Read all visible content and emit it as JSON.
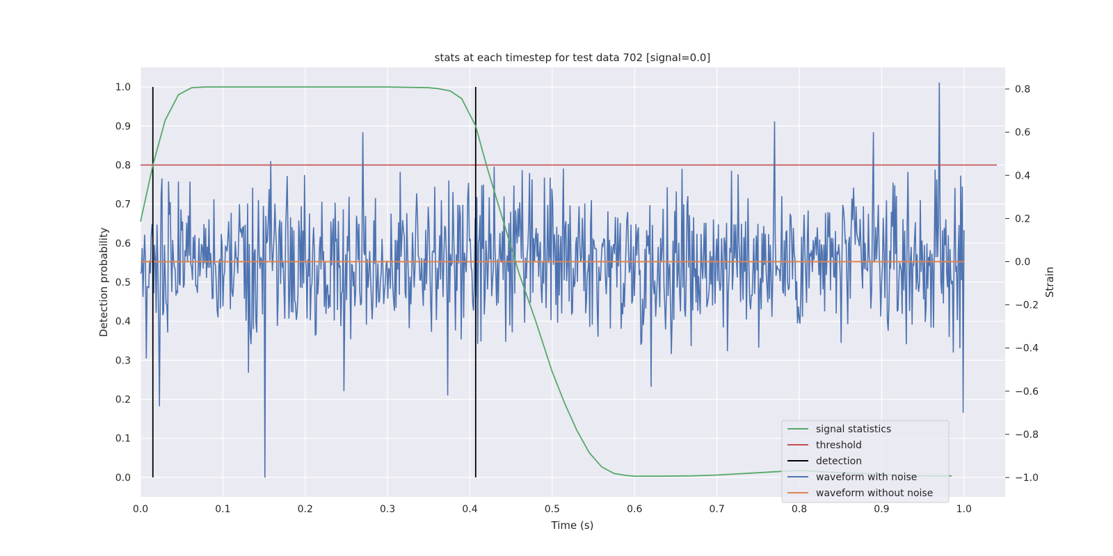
{
  "chart_data": {
    "type": "line",
    "title": "stats at each timestep for test data 702 [signal=0.0]",
    "xlabel": "Time (s)",
    "ylabel_left": "Detection probability",
    "ylabel_right": "Strain",
    "xlim": [
      0.0,
      1.05
    ],
    "ylim_left": [
      -0.05,
      1.05
    ],
    "ylim_right": [
      -1.09,
      0.9
    ],
    "x_ticks": [
      0.0,
      0.1,
      0.2,
      0.3,
      0.4,
      0.5,
      0.6,
      0.7,
      0.8,
      0.9,
      1.0
    ],
    "x_tick_labels": [
      "0.0",
      "0.1",
      "0.2",
      "0.3",
      "0.4",
      "0.5",
      "0.6",
      "0.7",
      "0.8",
      "0.9",
      "1.0"
    ],
    "y_left_ticks": [
      0.0,
      0.1,
      0.2,
      0.3,
      0.4,
      0.5,
      0.6,
      0.7,
      0.8,
      0.9,
      1.0
    ],
    "y_left_tick_labels": [
      "0.0",
      "0.1",
      "0.2",
      "0.3",
      "0.4",
      "0.5",
      "0.6",
      "0.7",
      "0.8",
      "0.9",
      "1.0"
    ],
    "y_right_ticks": [
      -1.0,
      -0.8,
      -0.6,
      -0.4,
      -0.2,
      0.0,
      0.2,
      0.4,
      0.6,
      0.8
    ],
    "y_right_tick_labels": [
      "−1.0",
      "−0.8",
      "−0.6",
      "−0.4",
      "−0.2",
      "0.0",
      "0.2",
      "0.4",
      "0.6",
      "0.8"
    ],
    "grid": true,
    "legend_position": "lower-right",
    "legend": [
      "signal statistics",
      "threshold",
      "detection",
      "waveform with noise",
      "waveform without noise"
    ],
    "colors": {
      "signal_statistics": "#55a868",
      "threshold": "#c44e52",
      "detection": "#000000",
      "waveform_with_noise": "#4c72b0",
      "waveform_without_noise": "#dd8452",
      "plot_background": "#eaeaf2",
      "grid": "#ffffff"
    },
    "series": {
      "signal_statistics": {
        "axis": "left",
        "x": [
          0.0,
          0.015,
          0.03,
          0.046,
          0.062,
          0.078,
          0.1,
          0.2,
          0.3,
          0.35,
          0.36,
          0.376,
          0.39,
          0.407,
          0.42,
          0.44,
          0.46,
          0.48,
          0.5,
          0.515,
          0.53,
          0.545,
          0.56,
          0.575,
          0.59,
          0.6,
          0.63,
          0.67,
          0.7,
          0.75,
          0.8,
          0.85,
          0.9,
          0.95,
          0.985
        ],
        "y": [
          0.655,
          0.8,
          0.915,
          0.98,
          0.998,
          1.0,
          1.0,
          1.0,
          1.0,
          0.998,
          0.996,
          0.99,
          0.97,
          0.9,
          0.8,
          0.66,
          0.52,
          0.4,
          0.27,
          0.19,
          0.12,
          0.063,
          0.027,
          0.01,
          0.005,
          0.003,
          0.003,
          0.004,
          0.006,
          0.012,
          0.018,
          0.012,
          0.008,
          0.004,
          0.004
        ]
      },
      "threshold": {
        "axis": "left",
        "x": [
          0.0,
          1.04
        ],
        "y": [
          0.8,
          0.8
        ]
      },
      "detection": {
        "axis": "left",
        "x": [
          0.015,
          0.407
        ],
        "ymin": 0.0,
        "ymax": 1.0
      },
      "waveform_without_noise": {
        "axis": "right",
        "x": [
          0.0,
          1.0
        ],
        "y": [
          0.0,
          0.0
        ]
      },
      "waveform_with_noise": {
        "axis": "right",
        "x_start": 0.0,
        "x_end": 1.0,
        "n_points": 1000,
        "spread": 0.26,
        "notable_points": [
          {
            "x": 0.151,
            "y": -1.0
          },
          {
            "x": 0.27,
            "y": 0.6
          },
          {
            "x": 0.97,
            "y": 0.83
          },
          {
            "x": 0.999,
            "y": -0.7
          },
          {
            "x": 0.023,
            "y": -0.67
          },
          {
            "x": 0.247,
            "y": -0.6
          },
          {
            "x": 0.373,
            "y": -0.62
          },
          {
            "x": 0.62,
            "y": -0.58
          },
          {
            "x": 0.77,
            "y": 0.65
          },
          {
            "x": 0.89,
            "y": 0.6
          }
        ]
      }
    }
  }
}
